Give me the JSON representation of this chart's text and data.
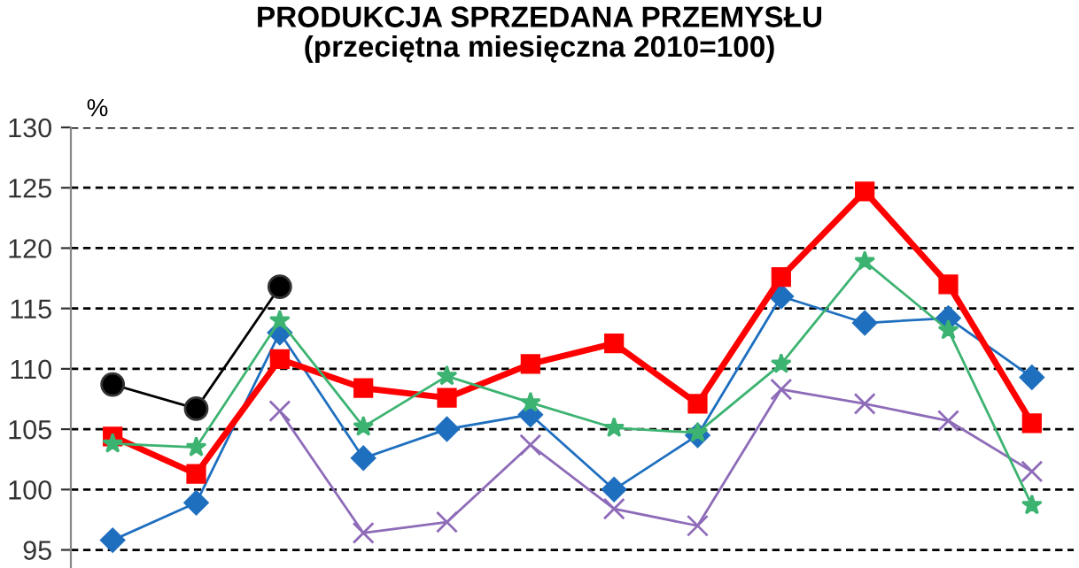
{
  "chart_data": {
    "type": "line",
    "title": "PRODUKCJA SPRZEDANA PRZEMYSŁU\n(przeciętna miesięczna 2010=100)",
    "ylabel": "%",
    "categories": [
      null,
      null,
      null,
      null,
      null,
      null,
      null,
      null,
      null,
      null,
      null,
      null
    ],
    "series": [
      {
        "color": "#000000",
        "marker": "circle",
        "values": [
          108.7,
          106.7,
          116.8,
          null,
          null,
          null,
          null,
          null,
          null,
          null,
          null,
          null
        ]
      },
      {
        "color": "#ff0000",
        "marker": "square",
        "values": [
          104.4,
          101.3,
          110.8,
          108.4,
          107.6,
          110.4,
          112.1,
          107.1,
          117.6,
          124.7,
          117.0,
          105.5
        ]
      },
      {
        "color": "#1f6fbf",
        "marker": "diamond",
        "values": [
          95.8,
          98.9,
          113.0,
          102.6,
          105.0,
          106.2,
          100.0,
          104.5,
          116.0,
          113.8,
          114.2,
          109.3
        ]
      },
      {
        "color": "#3cb371",
        "marker": "star",
        "values": [
          103.8,
          103.5,
          114.0,
          105.2,
          109.4,
          107.2,
          105.1,
          104.7,
          110.4,
          118.9,
          113.2,
          98.7
        ]
      },
      {
        "color": "#8e6bb8",
        "marker": "cross",
        "values": [
          null,
          null,
          106.5,
          96.4,
          97.3,
          103.7,
          98.4,
          97.0,
          108.3,
          107.1,
          105.7,
          101.5
        ]
      }
    ],
    "ylim": [
      93.5,
      130
    ],
    "yticks": [
      95,
      100,
      105,
      110,
      115,
      120,
      125,
      130
    ],
    "grid": "y",
    "tick_labels": "y",
    "legend": false
  }
}
